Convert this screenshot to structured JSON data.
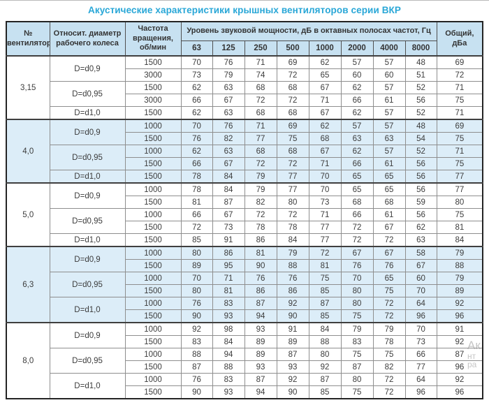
{
  "title": "Акустические характеристики крышных вентиляторов серии ВКР",
  "colors": {
    "title_text": "#29a7d7",
    "header_bg": "#c7e1f1",
    "shaded_group_bg": "#dcedf8",
    "outer_border": "#242424",
    "inner_border": "#8e8e8e"
  },
  "table": {
    "headers": {
      "fan_number": "№\nвентилятора",
      "diameter": "Относит. диаметр\nрабочего колеса",
      "rpm": "Частота\nвращения,\nоб/мин",
      "sound_power": "Уровень звуковой мощности, дБ в октавных полосах частот, Гц",
      "frequencies": [
        "63",
        "125",
        "250",
        "500",
        "1000",
        "2000",
        "4000",
        "8000"
      ],
      "total": "Общий,\nдБа"
    },
    "groups": [
      {
        "fan": "3,15",
        "shaded": false,
        "subgroups": [
          {
            "diameter": "D=d0,9",
            "rows": [
              {
                "rpm": "1500",
                "values": [
                  70,
                  76,
                  71,
                  69,
                  62,
                  57,
                  57,
                  48
                ],
                "total": 69
              },
              {
                "rpm": "3000",
                "values": [
                  73,
                  79,
                  74,
                  72,
                  65,
                  60,
                  60,
                  51
                ],
                "total": 72
              }
            ]
          },
          {
            "diameter": "D=d0,95",
            "rows": [
              {
                "rpm": "1500",
                "values": [
                  62,
                  63,
                  68,
                  68,
                  67,
                  62,
                  57,
                  52
                ],
                "total": 71
              },
              {
                "rpm": "3000",
                "values": [
                  66,
                  67,
                  72,
                  72,
                  71,
                  66,
                  61,
                  56
                ],
                "total": 75
              }
            ]
          },
          {
            "diameter": "D=d1,0",
            "rows": [
              {
                "rpm": "1500",
                "values": [
                  62,
                  63,
                  68,
                  68,
                  67,
                  62,
                  57,
                  52
                ],
                "total": 71
              }
            ]
          }
        ]
      },
      {
        "fan": "4,0",
        "shaded": true,
        "subgroups": [
          {
            "diameter": "D=d0,9",
            "rows": [
              {
                "rpm": "1000",
                "values": [
                  70,
                  76,
                  71,
                  69,
                  62,
                  57,
                  57,
                  48
                ],
                "total": 69
              },
              {
                "rpm": "1500",
                "values": [
                  76,
                  82,
                  77,
                  75,
                  68,
                  63,
                  63,
                  54
                ],
                "total": 75
              }
            ]
          },
          {
            "diameter": "D=d0,95",
            "rows": [
              {
                "rpm": "1000",
                "values": [
                  62,
                  63,
                  68,
                  68,
                  67,
                  62,
                  57,
                  52
                ],
                "total": 71
              },
              {
                "rpm": "1500",
                "values": [
                  66,
                  67,
                  72,
                  72,
                  71,
                  66,
                  61,
                  56
                ],
                "total": 75
              }
            ]
          },
          {
            "diameter": "D=d1,0",
            "rows": [
              {
                "rpm": "1500",
                "values": [
                  78,
                  84,
                  79,
                  77,
                  70,
                  65,
                  65,
                  56
                ],
                "total": 77
              }
            ]
          }
        ]
      },
      {
        "fan": "5,0",
        "shaded": false,
        "subgroups": [
          {
            "diameter": "D=d0,9",
            "rows": [
              {
                "rpm": "1000",
                "values": [
                  78,
                  84,
                  79,
                  77,
                  70,
                  65,
                  65,
                  56
                ],
                "total": 77
              },
              {
                "rpm": "1500",
                "values": [
                  81,
                  87,
                  82,
                  80,
                  73,
                  68,
                  68,
                  59
                ],
                "total": 80
              }
            ]
          },
          {
            "diameter": "D=d0,95",
            "rows": [
              {
                "rpm": "1000",
                "values": [
                  66,
                  67,
                  72,
                  72,
                  71,
                  66,
                  61,
                  56
                ],
                "total": 75
              },
              {
                "rpm": "1500",
                "values": [
                  72,
                  73,
                  78,
                  78,
                  77,
                  72,
                  67,
                  62
                ],
                "total": 81
              }
            ]
          },
          {
            "diameter": "D=d1,0",
            "rows": [
              {
                "rpm": "1500",
                "values": [
                  85,
                  91,
                  86,
                  84,
                  77,
                  72,
                  72,
                  63
                ],
                "total": 84
              }
            ]
          }
        ]
      },
      {
        "fan": "6,3",
        "shaded": true,
        "subgroups": [
          {
            "diameter": "D=d0,9",
            "rows": [
              {
                "rpm": "1000",
                "values": [
                  80,
                  86,
                  81,
                  79,
                  72,
                  67,
                  67,
                  58
                ],
                "total": 79
              },
              {
                "rpm": "1500",
                "values": [
                  89,
                  95,
                  90,
                  88,
                  81,
                  76,
                  76,
                  67
                ],
                "total": 88
              }
            ]
          },
          {
            "diameter": "D=d0,95",
            "rows": [
              {
                "rpm": "1000",
                "values": [
                  70,
                  71,
                  76,
                  76,
                  75,
                  70,
                  65,
                  60
                ],
                "total": 79
              },
              {
                "rpm": "1500",
                "values": [
                  80,
                  81,
                  86,
                  86,
                  85,
                  80,
                  75,
                  70
                ],
                "total": 89
              }
            ]
          },
          {
            "diameter": "D=d1,0",
            "rows": [
              {
                "rpm": "1000",
                "values": [
                  76,
                  83,
                  87,
                  92,
                  87,
                  80,
                  72,
                  64
                ],
                "total": 92
              },
              {
                "rpm": "1500",
                "values": [
                  90,
                  93,
                  94,
                  90,
                  85,
                  75,
                  72,
                  96
                ],
                "total": 96
              }
            ]
          }
        ]
      },
      {
        "fan": "8,0",
        "shaded": false,
        "subgroups": [
          {
            "diameter": "D=d0,9",
            "rows": [
              {
                "rpm": "1000",
                "values": [
                  92,
                  98,
                  93,
                  91,
                  84,
                  79,
                  79,
                  70
                ],
                "total": 91
              },
              {
                "rpm": "1500",
                "values": [
                  83,
                  84,
                  89,
                  89,
                  88,
                  83,
                  78,
                  73
                ],
                "total": 92
              }
            ]
          },
          {
            "diameter": "D=d0,95",
            "rows": [
              {
                "rpm": "1000",
                "values": [
                  88,
                  94,
                  89,
                  87,
                  80,
                  75,
                  75,
                  66
                ],
                "total": 87
              },
              {
                "rpm": "1500",
                "values": [
                  87,
                  88,
                  93,
                  93,
                  92,
                  87,
                  82,
                  77
                ],
                "total": 96
              }
            ]
          },
          {
            "diameter": "D=d1,0",
            "rows": [
              {
                "rpm": "1000",
                "values": [
                  76,
                  83,
                  87,
                  92,
                  87,
                  80,
                  72,
                  64
                ],
                "total": 92
              },
              {
                "rpm": "1500",
                "values": [
                  90,
                  93,
                  94,
                  90,
                  85,
                  75,
                  72,
                  96
                ],
                "total": 96
              }
            ]
          }
        ]
      }
    ]
  },
  "watermark": {
    "fragments": [
      "Ак",
      "нт",
      "ра"
    ]
  }
}
